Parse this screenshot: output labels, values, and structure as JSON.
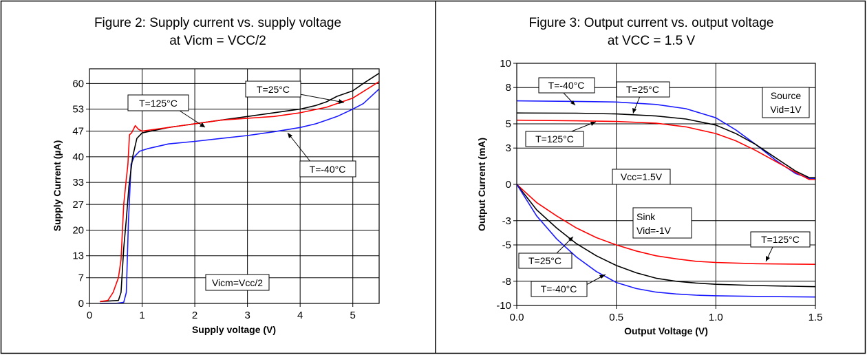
{
  "chart_data": [
    {
      "type": "line",
      "title": "Figure 2: Supply current vs. supply voltage",
      "subtitle": "at Vicm = VCC/2",
      "xlabel": "Supply voltage (V)",
      "ylabel": "Supply Current (µA)",
      "xlim": [
        0,
        5.5
      ],
      "ylim": [
        0,
        64
      ],
      "x_ticks": [
        0,
        1,
        2,
        3,
        4,
        5
      ],
      "y_ticks": [
        0,
        7,
        13,
        20,
        27,
        33,
        40,
        47,
        53,
        60
      ],
      "grid": true,
      "colors": {
        "T=-40°C": "#1a1aff",
        "T=25°C": "#000000",
        "T=125°C": "#ff0000"
      },
      "series": [
        {
          "name": "T=-40°C",
          "points": [
            [
              0.2,
              0
            ],
            [
              0.5,
              0
            ],
            [
              0.65,
              0.3
            ],
            [
              0.7,
              3
            ],
            [
              0.74,
              22
            ],
            [
              0.79,
              38
            ],
            [
              0.85,
              40
            ],
            [
              0.95,
              41.5
            ],
            [
              1.1,
              42.2
            ],
            [
              1.5,
              43.5
            ],
            [
              2,
              44.2
            ],
            [
              2.5,
              45
            ],
            [
              3,
              45.8
            ],
            [
              3.5,
              46.8
            ],
            [
              4,
              48
            ],
            [
              4.3,
              49
            ],
            [
              4.5,
              50
            ],
            [
              4.7,
              51
            ],
            [
              5,
              53
            ],
            [
              5.2,
              54.5
            ],
            [
              5.5,
              58.5
            ]
          ]
        },
        {
          "name": "T=25°C",
          "points": [
            [
              0.2,
              0.5
            ],
            [
              0.55,
              0.8
            ],
            [
              0.6,
              3
            ],
            [
              0.65,
              15
            ],
            [
              0.7,
              23
            ],
            [
              0.75,
              32
            ],
            [
              0.82,
              40
            ],
            [
              0.9,
              45
            ],
            [
              1,
              46.5
            ],
            [
              1.5,
              48
            ],
            [
              2,
              49
            ],
            [
              2.5,
              50
            ],
            [
              3,
              51
            ],
            [
              3.5,
              52
            ],
            [
              4,
              53
            ],
            [
              4.3,
              54
            ],
            [
              4.5,
              55
            ],
            [
              4.7,
              56.5
            ],
            [
              5,
              58
            ],
            [
              5.2,
              60
            ],
            [
              5.5,
              62.8
            ]
          ]
        },
        {
          "name": "T=125°C",
          "points": [
            [
              0.2,
              0.5
            ],
            [
              0.35,
              0.8
            ],
            [
              0.45,
              3
            ],
            [
              0.55,
              7
            ],
            [
              0.6,
              12
            ],
            [
              0.65,
              27
            ],
            [
              0.7,
              34
            ],
            [
              0.73,
              38
            ],
            [
              0.76,
              46
            ],
            [
              0.8,
              46.5
            ],
            [
              0.87,
              48.5
            ],
            [
              0.93,
              47.5
            ],
            [
              1,
              47
            ],
            [
              1.5,
              48
            ],
            [
              2,
              49
            ],
            [
              2.5,
              50
            ],
            [
              3,
              50.5
            ],
            [
              3.5,
              51
            ],
            [
              4,
              52
            ],
            [
              4.5,
              53.5
            ],
            [
              5,
              56
            ],
            [
              5.5,
              60.5
            ]
          ]
        }
      ],
      "annotations": {
        "label_125": "T=125°C",
        "label_25": "T=25°C",
        "label_m40": "T=-40°C",
        "note": "Vicm=Vcc/2"
      }
    },
    {
      "type": "line",
      "title": "Figure 3: Output current vs. output voltage",
      "subtitle": "at VCC = 1.5 V",
      "xlabel": "Output Voltage (V)",
      "ylabel": "Output Current (mA)",
      "xlim": [
        0,
        1.5
      ],
      "ylim": [
        -10,
        10
      ],
      "x_ticks": [
        "0.0",
        "0.5",
        "1.0",
        "1.5"
      ],
      "y_ticks": [
        10,
        8,
        5,
        3,
        0,
        -3,
        -5,
        -8,
        -10
      ],
      "grid": true,
      "colors": {
        "T=-40°C": "#1a1aff",
        "T=25°C": "#000000",
        "T=125°C": "#ff0000"
      },
      "series": [
        {
          "name": "T=-40°C",
          "group": "Source",
          "points": [
            [
              0,
              6.9
            ],
            [
              0.3,
              6.85
            ],
            [
              0.5,
              6.8
            ],
            [
              0.7,
              6.6
            ],
            [
              0.85,
              6.25
            ],
            [
              1,
              5.5
            ],
            [
              1.1,
              4.5
            ],
            [
              1.2,
              3.3
            ],
            [
              1.3,
              2
            ],
            [
              1.4,
              0.9
            ],
            [
              1.47,
              0.5
            ],
            [
              1.5,
              0.5
            ]
          ]
        },
        {
          "name": "T=25°C",
          "group": "Source",
          "points": [
            [
              0,
              5.9
            ],
            [
              0.3,
              5.88
            ],
            [
              0.5,
              5.82
            ],
            [
              0.7,
              5.65
            ],
            [
              0.85,
              5.4
            ],
            [
              1,
              4.9
            ],
            [
              1.1,
              4.2
            ],
            [
              1.2,
              3.3
            ],
            [
              1.3,
              2.2
            ],
            [
              1.4,
              1.1
            ],
            [
              1.47,
              0.55
            ],
            [
              1.5,
              0.55
            ]
          ]
        },
        {
          "name": "T=125°C",
          "group": "Source",
          "points": [
            [
              0,
              5.3
            ],
            [
              0.3,
              5.25
            ],
            [
              0.5,
              5.2
            ],
            [
              0.7,
              5.05
            ],
            [
              0.85,
              4.75
            ],
            [
              1,
              4.2
            ],
            [
              1.1,
              3.6
            ],
            [
              1.2,
              2.8
            ],
            [
              1.3,
              1.9
            ],
            [
              1.4,
              1.0
            ],
            [
              1.47,
              0.4
            ],
            [
              1.5,
              0.4
            ]
          ]
        },
        {
          "name": "T=125°C",
          "group": "Sink",
          "points": [
            [
              0,
              0
            ],
            [
              0.1,
              -1.5
            ],
            [
              0.2,
              -2.6
            ],
            [
              0.3,
              -3.6
            ],
            [
              0.4,
              -4.4
            ],
            [
              0.5,
              -5.0
            ],
            [
              0.6,
              -5.5
            ],
            [
              0.7,
              -5.9
            ],
            [
              0.8,
              -6.15
            ],
            [
              0.9,
              -6.35
            ],
            [
              1.0,
              -6.45
            ],
            [
              1.2,
              -6.55
            ],
            [
              1.5,
              -6.6
            ]
          ]
        },
        {
          "name": "T=25°C",
          "group": "Sink",
          "points": [
            [
              0,
              0
            ],
            [
              0.1,
              -2.1
            ],
            [
              0.2,
              -3.6
            ],
            [
              0.3,
              -4.9
            ],
            [
              0.4,
              -5.9
            ],
            [
              0.5,
              -6.7
            ],
            [
              0.6,
              -7.3
            ],
            [
              0.7,
              -7.75
            ],
            [
              0.8,
              -8.0
            ],
            [
              0.9,
              -8.15
            ],
            [
              1.0,
              -8.25
            ],
            [
              1.2,
              -8.35
            ],
            [
              1.5,
              -8.45
            ]
          ]
        },
        {
          "name": "T=-40°C",
          "group": "Sink",
          "points": [
            [
              0,
              0
            ],
            [
              0.1,
              -2.6
            ],
            [
              0.2,
              -4.5
            ],
            [
              0.3,
              -6.0
            ],
            [
              0.4,
              -7.2
            ],
            [
              0.5,
              -8.1
            ],
            [
              0.6,
              -8.6
            ],
            [
              0.7,
              -8.9
            ],
            [
              0.8,
              -9.05
            ],
            [
              0.9,
              -9.15
            ],
            [
              1.0,
              -9.2
            ],
            [
              1.2,
              -9.25
            ],
            [
              1.5,
              -9.3
            ]
          ]
        }
      ],
      "annotations": {
        "label_m40_src": "T=-40°C",
        "label_25_src": "T=25°C",
        "label_125_src": "T=125°C",
        "source_line1": "Source",
        "source_line2": "Vid=1V",
        "vcc": "Vcc=1.5V",
        "sink_line1": "Sink",
        "sink_line2": "Vid=-1V",
        "label_125_snk": "T=125°C",
        "label_25_snk": "T=25°C",
        "label_m40_snk": "T=-40°C"
      }
    }
  ]
}
